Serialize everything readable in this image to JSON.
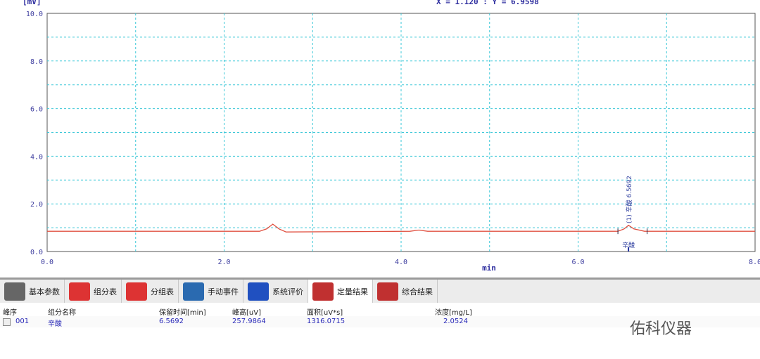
{
  "header": {
    "unit": "[mV]",
    "cursor": "X = 1.120 : Y = 6.9598"
  },
  "chart_data": {
    "type": "line",
    "xlabel": "min",
    "ylabel": "[mV]",
    "xlim": [
      0,
      8
    ],
    "ylim": [
      0,
      10
    ],
    "xticks": [
      "0.0",
      "2.0",
      "4.0",
      "6.0",
      "8.0"
    ],
    "yticks": [
      "0.0",
      "2.0",
      "4.0",
      "6.0",
      "8.0",
      "10.0"
    ],
    "grid": true,
    "line_color": "#e05040",
    "trace": {
      "x": [
        0,
        2.4,
        2.48,
        2.55,
        2.62,
        2.7,
        4.1,
        4.2,
        4.3,
        6.45,
        6.52,
        6.57,
        6.63,
        6.75,
        8
      ],
      "y": [
        0.85,
        0.85,
        0.95,
        1.15,
        0.95,
        0.82,
        0.85,
        0.9,
        0.85,
        0.85,
        0.95,
        1.1,
        0.95,
        0.85,
        0.85
      ]
    },
    "peak_annotation": "(1) 辛酸 6.5692",
    "peak_marker_label": "辛酸",
    "peak_x": 6.5692
  },
  "tabs": [
    {
      "label": "基本参数",
      "icon": "tools-icon"
    },
    {
      "label": "组分表",
      "icon": "table-icon"
    },
    {
      "label": "分组表",
      "icon": "table-icon"
    },
    {
      "label": "手动事件",
      "icon": "clock-icon"
    },
    {
      "label": "系统评价",
      "icon": "computer-icon"
    },
    {
      "label": "定量结果",
      "icon": "bar-chart-icon",
      "active": true
    },
    {
      "label": "综合结果",
      "icon": "bar-chart-icon"
    }
  ],
  "table": {
    "headers": [
      "峰序",
      "组分名称",
      "保留时间[min]",
      "峰高[uV]",
      "面积[uV*s]",
      "浓度[mg/L]"
    ],
    "rows": [
      [
        "001",
        "辛酸",
        "6.5692",
        "257.9864",
        "1316.0715",
        "2.0524"
      ]
    ]
  },
  "watermark": "佑科仪器"
}
